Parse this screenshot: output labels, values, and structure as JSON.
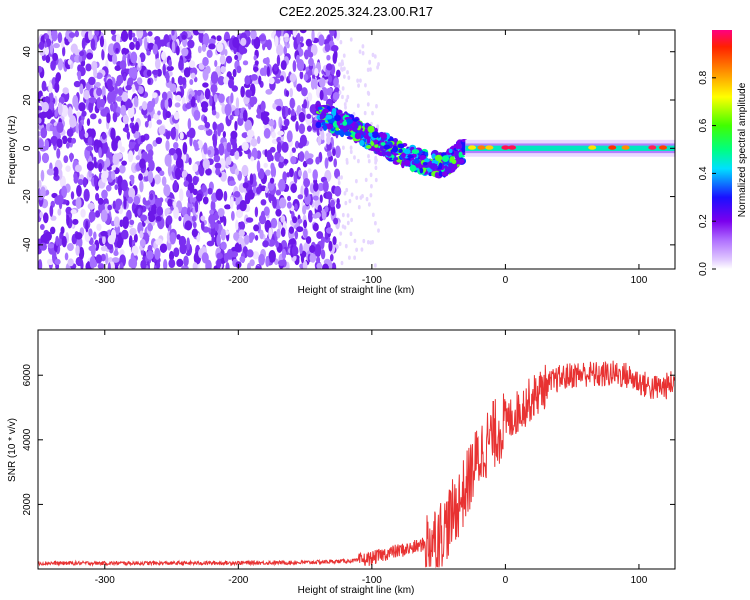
{
  "title": "C2E2.2025.324.23.00.R17",
  "chart_data": [
    {
      "type": "heatmap",
      "xlabel": "Height of straight line (km)",
      "ylabel": "Frequency (Hz)",
      "xlim": [
        -350,
        127
      ],
      "ylim": [
        -50,
        49
      ],
      "xticks": [
        -300,
        -200,
        -100,
        0,
        100
      ],
      "yticks": [
        -40,
        -20,
        0,
        20,
        40
      ],
      "colorbar": {
        "label": "Normalized spectral amplitude",
        "range": [
          0,
          1
        ],
        "ticks": [
          0.0,
          0.2,
          0.4,
          0.6,
          0.8
        ]
      },
      "trace": {
        "x": [
          -140,
          -120,
          -100,
          -80,
          -60,
          -45,
          -35,
          -25,
          -15,
          0,
          50,
          127
        ],
        "frequency": [
          14,
          10,
          4,
          -2,
          -6,
          -7,
          -2,
          1,
          0.5,
          0,
          0,
          0
        ]
      },
      "noise_region_x": [
        -350,
        -125
      ],
      "carrier_band_x": [
        -30,
        127
      ],
      "grid": false
    },
    {
      "type": "line",
      "xlabel": "Height of straight line (km)",
      "ylabel": "SNR (10 * v/v)",
      "xlim": [
        -350,
        127
      ],
      "ylim": [
        0,
        7400
      ],
      "xticks": [
        -300,
        -200,
        -100,
        0,
        100
      ],
      "yticks": [
        2000,
        4000,
        6000
      ],
      "series": [
        {
          "color": "#e83232",
          "x": [
            -350,
            -300,
            -250,
            -200,
            -150,
            -110,
            -100,
            -90,
            -80,
            -70,
            -60,
            -50,
            -45,
            -40,
            -35,
            -30,
            -25,
            -20,
            -15,
            -10,
            -5,
            0,
            10,
            20,
            30,
            40,
            50,
            60,
            70,
            80,
            90,
            100,
            110,
            120,
            127
          ],
          "y": [
            180,
            180,
            180,
            190,
            200,
            260,
            330,
            470,
            560,
            650,
            780,
            1050,
            1250,
            1650,
            2050,
            2450,
            3050,
            3450,
            3850,
            4100,
            4300,
            4500,
            4900,
            5300,
            5650,
            5900,
            6000,
            6050,
            6000,
            6050,
            6000,
            5800,
            5600,
            5650,
            5800
          ]
        }
      ],
      "grid": false
    }
  ]
}
